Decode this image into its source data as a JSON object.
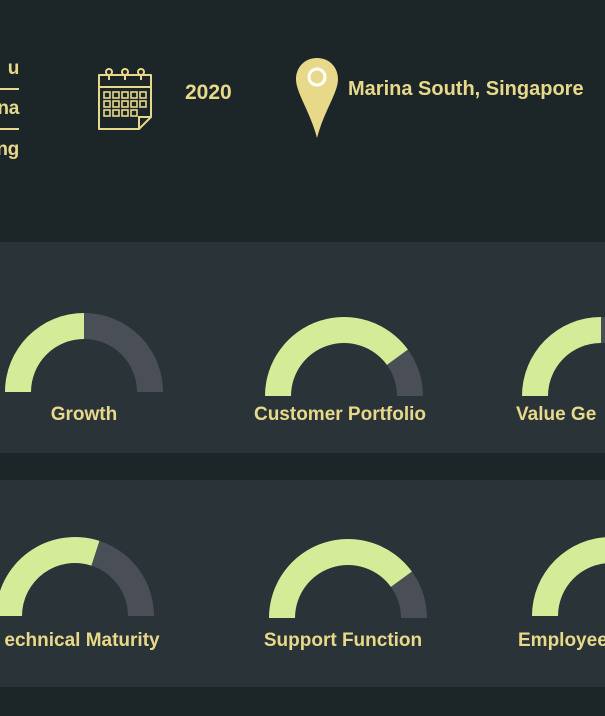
{
  "header": {
    "name_lines": [
      "u",
      "na",
      "ng"
    ],
    "year": "2020",
    "location": "Marina South, Singapore",
    "icons": [
      "calendar-icon",
      "map-pin-icon"
    ]
  },
  "colors": {
    "background": "#1c2629",
    "panel": "#2a3438",
    "accent_yellow": "#e8d98a",
    "gauge_fill": "#d4ec98",
    "gauge_track": "#4a4f57"
  },
  "gauge_rows": [
    {
      "gauges": [
        {
          "label": "Growth",
          "value": 0.5
        },
        {
          "label": "Customer Portfolio",
          "value": 0.8
        },
        {
          "label": "Value Ge",
          "value": 0.5
        }
      ]
    },
    {
      "gauges": [
        {
          "label": "echnical Maturity",
          "value": 0.6
        },
        {
          "label": "Support Function",
          "value": 0.8
        },
        {
          "label": "Employee",
          "value": 0.5
        }
      ]
    }
  ]
}
